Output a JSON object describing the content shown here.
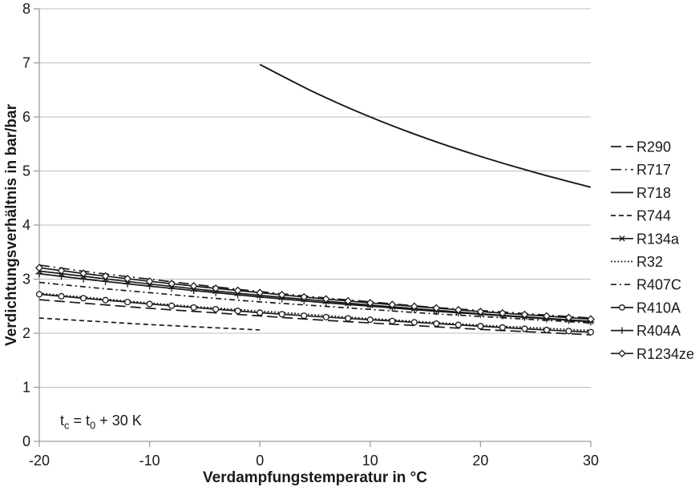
{
  "colors": {
    "line": "#1a1a1a",
    "grid": "#bdbdbd",
    "axis": "#9d9d9d",
    "text": "#1a1a1a",
    "background": "#ffffff"
  },
  "annotation": {
    "text": "tc = t0 + 30 K",
    "parts": [
      {
        "text": "t"
      },
      {
        "text": "c",
        "sub": true
      },
      {
        "text": " = t"
      },
      {
        "text": "0",
        "sub": true
      },
      {
        "text": " + 30 K"
      }
    ]
  },
  "chart_data": {
    "type": "line",
    "title": "",
    "xlabel": "Verdampfungstemperatur in °C",
    "ylabel": "Verdichtungsverhältnis in bar/bar",
    "xlim": [
      -20,
      30
    ],
    "ylim": [
      0,
      8
    ],
    "xticks": [
      -20,
      -10,
      0,
      10,
      20,
      30
    ],
    "yticks": [
      0,
      1,
      2,
      3,
      4,
      5,
      6,
      7,
      8
    ],
    "grid": "horizontal-only",
    "legend_position": "right",
    "marker_step_degC": 2,
    "series": [
      {
        "name": "R290",
        "line": "dash",
        "dash": "13,6",
        "marker": null,
        "x": [
          -20,
          -15,
          -10,
          -5,
          0,
          5,
          10,
          15,
          20,
          25,
          30
        ],
        "y": [
          2.62,
          2.54,
          2.46,
          2.39,
          2.32,
          2.25,
          2.19,
          2.13,
          2.07,
          2.02,
          1.97
        ]
      },
      {
        "name": "R717",
        "line": "dashdot",
        "dash": "13,5,2,5",
        "marker": null,
        "x": [
          -20,
          -15,
          -10,
          -5,
          0,
          5,
          10,
          15,
          20,
          25,
          30
        ],
        "y": [
          3.26,
          3.12,
          3.0,
          2.88,
          2.77,
          2.67,
          2.58,
          2.49,
          2.42,
          2.35,
          2.28
        ]
      },
      {
        "name": "R718",
        "line": "solid",
        "dash": null,
        "marker": null,
        "x": [
          0,
          5,
          10,
          15,
          20,
          25,
          30
        ],
        "y": [
          6.97,
          6.45,
          6.0,
          5.61,
          5.27,
          4.97,
          4.7
        ]
      },
      {
        "name": "R744",
        "line": "dash",
        "dash": "6,4",
        "marker": null,
        "x": [
          -20,
          -15,
          -10,
          -5,
          0
        ],
        "y": [
          2.28,
          2.22,
          2.16,
          2.11,
          2.06
        ]
      },
      {
        "name": "R134a",
        "line": "solid",
        "dash": null,
        "marker": "x",
        "x": [
          -20,
          -15,
          -10,
          -5,
          0,
          5,
          10,
          15,
          20,
          25,
          30
        ],
        "y": [
          3.15,
          3.03,
          2.91,
          2.8,
          2.7,
          2.61,
          2.52,
          2.44,
          2.36,
          2.29,
          2.22
        ]
      },
      {
        "name": "R32",
        "line": "dot",
        "dash": "1.8,2.4",
        "marker": null,
        "x": [
          -20,
          -15,
          -10,
          -5,
          0,
          5,
          10,
          15,
          20,
          25,
          30
        ],
        "y": [
          2.74,
          2.65,
          2.56,
          2.48,
          2.41,
          2.34,
          2.27,
          2.21,
          2.15,
          2.1,
          2.05
        ]
      },
      {
        "name": "R407C",
        "line": "dashdot",
        "dash": "7,4,2,4",
        "marker": null,
        "x": [
          -20,
          -15,
          -10,
          -5,
          0,
          5,
          10,
          15,
          20,
          25,
          30
        ],
        "y": [
          2.94,
          2.84,
          2.75,
          2.66,
          2.58,
          2.51,
          2.44,
          2.37,
          2.31,
          2.25,
          2.19
        ]
      },
      {
        "name": "R410A",
        "line": "solid",
        "dash": null,
        "marker": "circle",
        "x": [
          -20,
          -15,
          -10,
          -5,
          0,
          5,
          10,
          15,
          20,
          25,
          30
        ],
        "y": [
          2.72,
          2.63,
          2.54,
          2.46,
          2.38,
          2.31,
          2.25,
          2.19,
          2.13,
          2.07,
          2.02
        ]
      },
      {
        "name": "R404A",
        "line": "solid",
        "dash": null,
        "marker": "plus",
        "x": [
          -20,
          -15,
          -10,
          -5,
          0,
          5,
          10,
          15,
          20,
          25,
          30
        ],
        "y": [
          3.1,
          2.98,
          2.87,
          2.77,
          2.67,
          2.58,
          2.5,
          2.42,
          2.35,
          2.28,
          2.21
        ]
      },
      {
        "name": "R1234ze",
        "line": "solid",
        "dash": null,
        "marker": "diamond",
        "x": [
          -20,
          -15,
          -10,
          -5,
          0,
          5,
          10,
          15,
          20,
          25,
          30
        ],
        "y": [
          3.21,
          3.08,
          2.96,
          2.85,
          2.75,
          2.65,
          2.56,
          2.48,
          2.4,
          2.33,
          2.26
        ]
      }
    ]
  }
}
